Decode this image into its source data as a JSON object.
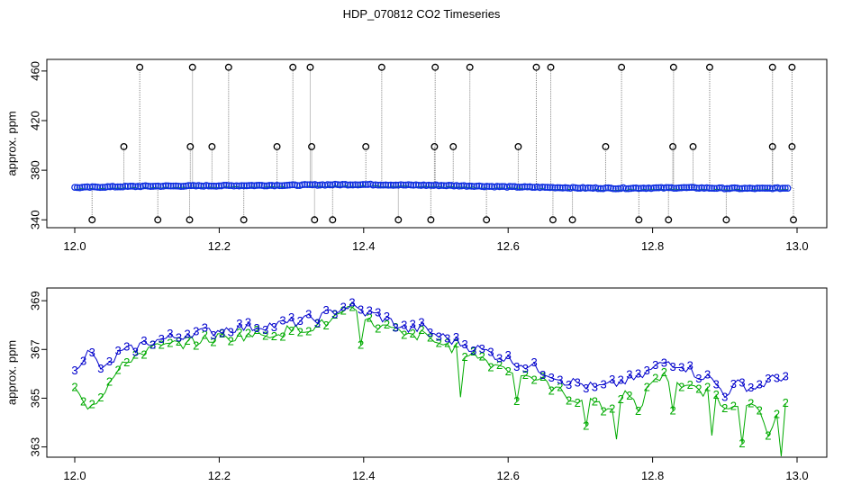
{
  "title": "HDP_070812  CO2 Timeseries",
  "chart_data": [
    {
      "type": "scatter",
      "ylabel": "approx. ppm",
      "xlim": [
        12.0,
        13.0
      ],
      "ylim": [
        338,
        465
      ],
      "x_ticks": [
        "12.0",
        "12.2",
        "12.4",
        "12.6",
        "12.8",
        "13.0"
      ],
      "y_ticks": [
        "340",
        "380",
        "420",
        "460"
      ],
      "baseline": {
        "x": [
          12.0,
          12.05,
          12.1,
          12.15,
          12.2,
          12.25,
          12.3,
          12.35,
          12.4,
          12.45,
          12.5,
          12.55,
          12.6,
          12.65,
          12.7,
          12.75,
          12.8,
          12.85,
          12.9,
          12.95,
          12.99
        ],
        "y": [
          366.0,
          366.6,
          367.1,
          367.3,
          367.5,
          367.7,
          367.9,
          368.3,
          368.5,
          368.1,
          367.8,
          367.3,
          366.6,
          366.2,
          365.7,
          365.4,
          365.7,
          365.9,
          365.4,
          365.3,
          365.6
        ]
      },
      "spikes_high": [
        12.09,
        12.163,
        12.213,
        12.302,
        12.326,
        12.425,
        12.499,
        12.547,
        12.639,
        12.659,
        12.757,
        12.829,
        12.879,
        12.966,
        12.993
      ],
      "spikes_mid": [
        12.068,
        12.16,
        12.19,
        12.28,
        12.328,
        12.403,
        12.498,
        12.524,
        12.614,
        12.735,
        12.828,
        12.856,
        12.966,
        12.993
      ],
      "spikes_low": [
        12.024,
        12.115,
        12.159,
        12.234,
        12.332,
        12.357,
        12.448,
        12.493,
        12.57,
        12.662,
        12.689,
        12.781,
        12.822,
        12.902,
        12.995
      ],
      "spike_values": {
        "high": 463,
        "mid": 399,
        "low": 340
      }
    },
    {
      "type": "line",
      "ylabel": "approx. ppm",
      "xlim": [
        12.0,
        13.0
      ],
      "ylim": [
        362.8,
        369.3
      ],
      "x_ticks": [
        "12.0",
        "12.2",
        "12.4",
        "12.6",
        "12.8",
        "13.0"
      ],
      "y_ticks": [
        "363",
        "365",
        "367",
        "369"
      ],
      "series": [
        {
          "marker": "3",
          "color": "#0000cc",
          "x": [
            12.0,
            12.02,
            12.04,
            12.06,
            12.08,
            12.1,
            12.12,
            12.14,
            12.16,
            12.18,
            12.2,
            12.22,
            12.24,
            12.26,
            12.28,
            12.3,
            12.32,
            12.34,
            12.36,
            12.38,
            12.4,
            12.42,
            12.44,
            12.46,
            12.48,
            12.5,
            12.52,
            12.54,
            12.56,
            12.58,
            12.6,
            12.62,
            12.64,
            12.66,
            12.68,
            12.7,
            12.72,
            12.74,
            12.76,
            12.78,
            12.8,
            12.82,
            12.84,
            12.86,
            12.88,
            12.9,
            12.92,
            12.94,
            12.96,
            12.98
          ],
          "y": [
            366.3,
            366.9,
            366.1,
            366.8,
            367.0,
            367.3,
            367.4,
            367.5,
            367.7,
            367.7,
            367.8,
            367.9,
            367.9,
            368.0,
            368.0,
            368.1,
            368.2,
            368.3,
            368.6,
            368.8,
            368.5,
            368.4,
            368.1,
            367.8,
            367.9,
            367.6,
            367.4,
            367.2,
            367.0,
            366.8,
            366.6,
            366.4,
            366.2,
            366.0,
            365.7,
            365.6,
            365.4,
            365.5,
            365.7,
            365.8,
            366.2,
            366.5,
            366.4,
            366.0,
            365.8,
            365.2,
            365.6,
            365.4,
            365.7,
            365.9
          ]
        },
        {
          "marker": "2",
          "color": "#00aa00",
          "x": [
            12.0,
            12.02,
            12.04,
            12.06,
            12.08,
            12.1,
            12.12,
            12.14,
            12.16,
            12.18,
            12.2,
            12.22,
            12.24,
            12.26,
            12.28,
            12.3,
            12.32,
            12.34,
            12.36,
            12.38,
            12.4,
            12.42,
            12.44,
            12.46,
            12.48,
            12.5,
            12.52,
            12.54,
            12.56,
            12.58,
            12.6,
            12.62,
            12.64,
            12.66,
            12.68,
            12.7,
            12.72,
            12.74,
            12.76,
            12.78,
            12.8,
            12.82,
            12.84,
            12.86,
            12.88,
            12.9,
            12.92,
            12.94,
            12.96,
            12.98
          ],
          "y": [
            365.6,
            364.6,
            365.3,
            366.1,
            366.7,
            367.0,
            367.1,
            367.2,
            367.3,
            367.4,
            367.5,
            367.5,
            367.6,
            367.6,
            367.7,
            367.8,
            367.9,
            368.0,
            368.3,
            368.6,
            368.2,
            368.0,
            367.8,
            367.5,
            367.6,
            367.3,
            367.1,
            366.9,
            366.7,
            366.4,
            366.2,
            366.0,
            365.8,
            365.5,
            365.1,
            364.9,
            365.0,
            364.3,
            365.3,
            364.5,
            365.8,
            365.9,
            365.3,
            365.4,
            365.2,
            364.7,
            364.9,
            364.9,
            363.4,
            364.9
          ]
        }
      ]
    }
  ]
}
